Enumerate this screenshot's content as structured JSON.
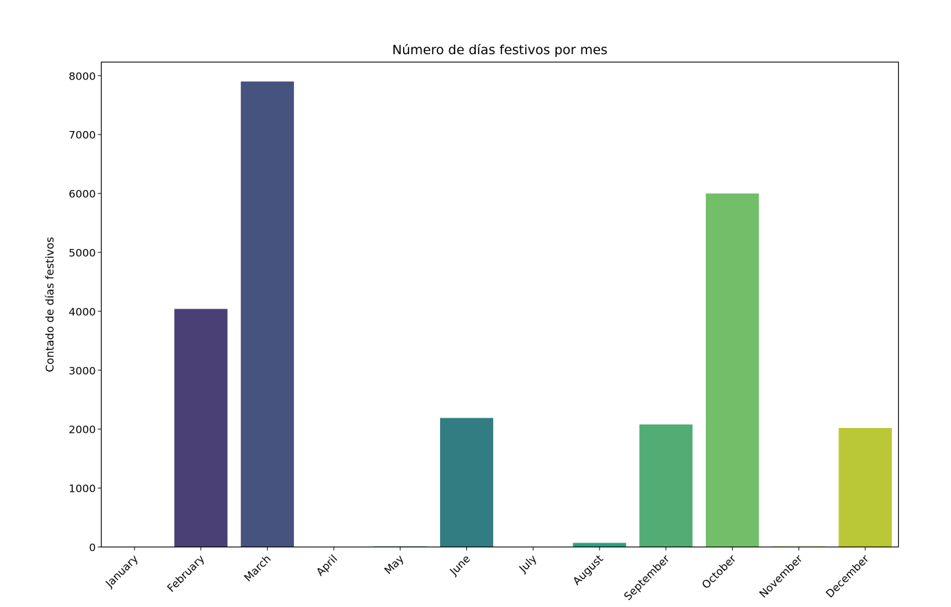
{
  "chart_data": {
    "type": "bar",
    "title": "Número de días festivos por mes",
    "xlabel": "",
    "ylabel": "Contado de días festivos",
    "categories": [
      "January",
      "February",
      "March",
      "April",
      "May",
      "June",
      "July",
      "August",
      "September",
      "October",
      "November",
      "December"
    ],
    "values": [
      0,
      4040,
      7900,
      0,
      10,
      2190,
      5,
      70,
      2080,
      6000,
      10,
      2020
    ],
    "colors": [
      "#472d7b",
      "#4a4076",
      "#46537e",
      "#3e6584",
      "#36788a",
      "#327d82",
      "#2c8e8c",
      "#2ba07f",
      "#52ad74",
      "#73bf69",
      "#9ccf52",
      "#bac736"
    ],
    "ylim": [
      0,
      8230
    ],
    "yticks": [
      0,
      1000,
      2000,
      3000,
      4000,
      5000,
      6000,
      7000,
      8000
    ],
    "grid": false,
    "legend": "none"
  }
}
